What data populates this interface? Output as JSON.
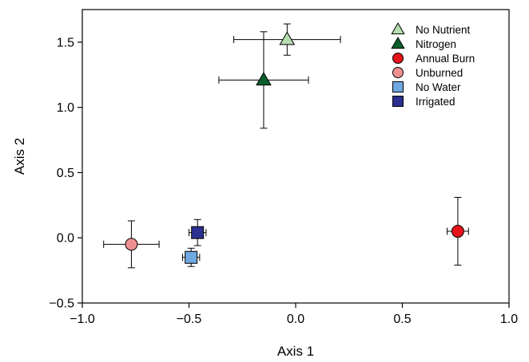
{
  "chart_data": {
    "type": "scatter",
    "xlabel": "Axis 1",
    "ylabel": "Axis 2",
    "xlim": [
      -1.0,
      1.0
    ],
    "ylim": [
      -0.5,
      1.75
    ],
    "x_ticks": [
      -1.0,
      -0.5,
      0.0,
      0.5,
      1.0
    ],
    "x_tick_labels": [
      "−1.0",
      "−0.5",
      "0.0",
      "0.5",
      "1.0"
    ],
    "y_ticks": [
      -0.5,
      0.0,
      0.5,
      1.0,
      1.5
    ],
    "y_tick_labels": [
      "−0.5",
      "0.0",
      "0.5",
      "1.0",
      "1.5"
    ],
    "grid": false,
    "legend_position": "top-right",
    "series": [
      {
        "name": "No Nutrient",
        "marker": "triangle",
        "color": "#b6dcb0",
        "x": -0.04,
        "y": 1.52,
        "x_err": 0.25,
        "y_err": 0.12
      },
      {
        "name": "Nitrogen",
        "marker": "triangle",
        "color": "#0b5e2c",
        "x": -0.15,
        "y": 1.21,
        "x_err": 0.21,
        "y_err": 0.37
      },
      {
        "name": "Annual Burn",
        "marker": "circle",
        "color": "#e8141c",
        "x": 0.76,
        "y": 0.05,
        "x_err": 0.05,
        "y_err": 0.26
      },
      {
        "name": "Unburned",
        "marker": "circle",
        "color": "#ee9090",
        "x": -0.77,
        "y": -0.05,
        "x_err": 0.13,
        "y_err": 0.18
      },
      {
        "name": "No Water",
        "marker": "square",
        "color": "#6fa8e0",
        "x": -0.49,
        "y": -0.15,
        "x_err": 0.04,
        "y_err": 0.07
      },
      {
        "name": "Irrigated",
        "marker": "square",
        "color": "#2b2f8f",
        "x": -0.46,
        "y": 0.04,
        "x_err": 0.04,
        "y_err": 0.1
      }
    ]
  }
}
